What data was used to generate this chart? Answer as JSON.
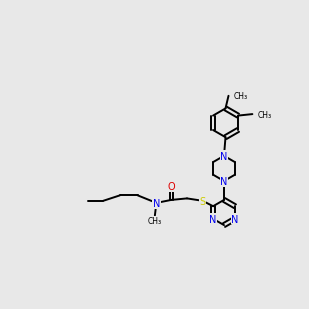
{
  "bg": "#e8e8e8",
  "bc": "#000000",
  "nc": "#0000ee",
  "oc": "#dd0000",
  "sc": "#cccc00",
  "figsize": [
    3.0,
    3.0
  ],
  "dpi": 100,
  "lw": 1.4,
  "fs": 7.0
}
